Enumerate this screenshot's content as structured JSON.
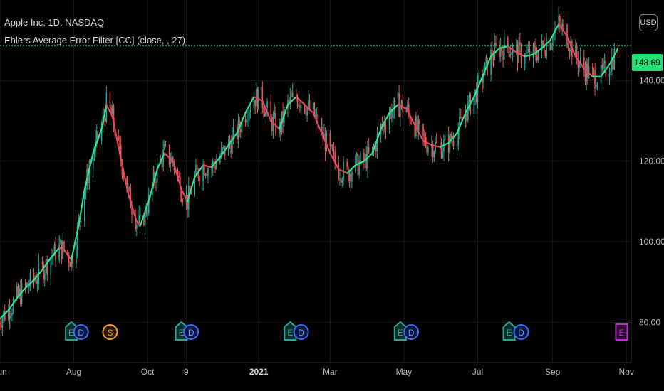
{
  "header": {
    "title": "Apple Inc, 1D, NASDAQ",
    "indicator": "Ehlers Average Error Filter [CC] (close, , 27)"
  },
  "currency_label": "USD",
  "last_price_label": "148.69",
  "colors": {
    "background": "#000000",
    "up_candle": "#26a69a",
    "down_candle": "#ef5350",
    "filter_rising": "#2ee28f",
    "filter_falling": "#e8455f",
    "last_price_line": "#22e073",
    "grid": "#1a1a1a"
  },
  "event_markers": [
    {
      "date": "2020-07-30",
      "label": "E",
      "type": "earnings"
    },
    {
      "date": "2020-08-07",
      "label": "D",
      "type": "dividend"
    },
    {
      "date": "2020-08-31",
      "label": "S",
      "type": "split"
    },
    {
      "date": "2020-10-29",
      "label": "E",
      "type": "earnings"
    },
    {
      "date": "2020-11-06",
      "label": "D",
      "type": "dividend"
    },
    {
      "date": "2021-01-27",
      "label": "E",
      "type": "earnings"
    },
    {
      "date": "2021-02-05",
      "label": "D",
      "type": "dividend"
    },
    {
      "date": "2021-04-28",
      "label": "E",
      "type": "earnings"
    },
    {
      "date": "2021-05-07",
      "label": "D",
      "type": "dividend"
    },
    {
      "date": "2021-07-27",
      "label": "E",
      "type": "earnings"
    },
    {
      "date": "2021-08-06",
      "label": "D",
      "type": "dividend"
    },
    {
      "date": "2021-10-28",
      "label": "E",
      "type": "upcoming-earnings"
    }
  ],
  "chart_data": {
    "type": "line",
    "title": "Apple Inc, 1D, NASDAQ",
    "xlabel": "",
    "ylabel": "",
    "x_ticks": [
      {
        "date": "2020-06-01",
        "label": "Jun"
      },
      {
        "date": "2020-08-01",
        "label": "Aug"
      },
      {
        "date": "2020-10-01",
        "label": "Oct"
      },
      {
        "date": "2020-11-02",
        "label": "9"
      },
      {
        "date": "2021-01-01",
        "label": "2021"
      },
      {
        "date": "2021-03-01",
        "label": "Mar"
      },
      {
        "date": "2021-05-01",
        "label": "May"
      },
      {
        "date": "2021-07-01",
        "label": "Jul"
      },
      {
        "date": "2021-09-01",
        "label": "Sep"
      },
      {
        "date": "2021-11-01",
        "label": "Nov"
      }
    ],
    "y_ticks": [
      80,
      100,
      120,
      140
    ],
    "y_tick_labels": [
      "80.00",
      "100.00",
      "120.00",
      "140.00"
    ],
    "ylim": [
      70,
      160
    ],
    "xlim": [
      "2020-06-01",
      "2021-11-05"
    ],
    "log_scale": false,
    "grid": true,
    "last_price": 148.69,
    "series": [
      {
        "name": "Ehlers Average Error Filter [CC] (close, , 27)",
        "points": [
          [
            "2020-05-29",
            80
          ],
          [
            "2020-06-08",
            83
          ],
          [
            "2020-06-15",
            86
          ],
          [
            "2020-06-22",
            88.5
          ],
          [
            "2020-06-29",
            90.5
          ],
          [
            "2020-07-06",
            93
          ],
          [
            "2020-07-13",
            96
          ],
          [
            "2020-07-20",
            98.5
          ],
          [
            "2020-07-24",
            98
          ],
          [
            "2020-07-30",
            95.5
          ],
          [
            "2020-08-05",
            104
          ],
          [
            "2020-08-10",
            113
          ],
          [
            "2020-08-17",
            122
          ],
          [
            "2020-08-24",
            128
          ],
          [
            "2020-08-28",
            134
          ],
          [
            "2020-09-02",
            131
          ],
          [
            "2020-09-08",
            122
          ],
          [
            "2020-09-15",
            112
          ],
          [
            "2020-09-22",
            105
          ],
          [
            "2020-09-25",
            104
          ],
          [
            "2020-10-02",
            110
          ],
          [
            "2020-10-09",
            118
          ],
          [
            "2020-10-15",
            122
          ],
          [
            "2020-10-22",
            120
          ],
          [
            "2020-10-29",
            113
          ],
          [
            "2020-11-03",
            110
          ],
          [
            "2020-11-09",
            116
          ],
          [
            "2020-11-16",
            119
          ],
          [
            "2020-11-23",
            118.5
          ],
          [
            "2020-11-30",
            121
          ],
          [
            "2020-12-07",
            124
          ],
          [
            "2020-12-14",
            127
          ],
          [
            "2020-12-21",
            132
          ],
          [
            "2020-12-28",
            136
          ],
          [
            "2021-01-04",
            135
          ],
          [
            "2021-01-11",
            130
          ],
          [
            "2021-01-18",
            128
          ],
          [
            "2021-01-25",
            134
          ],
          [
            "2021-02-01",
            136
          ],
          [
            "2021-02-08",
            134
          ],
          [
            "2021-02-15",
            132
          ],
          [
            "2021-02-22",
            127
          ],
          [
            "2021-03-01",
            122
          ],
          [
            "2021-03-08",
            118
          ],
          [
            "2021-03-15",
            117
          ],
          [
            "2021-03-22",
            119
          ],
          [
            "2021-03-29",
            120
          ],
          [
            "2021-04-05",
            122
          ],
          [
            "2021-04-12",
            128
          ],
          [
            "2021-04-19",
            132
          ],
          [
            "2021-04-26",
            134
          ],
          [
            "2021-05-03",
            133
          ],
          [
            "2021-05-10",
            129
          ],
          [
            "2021-05-17",
            125
          ],
          [
            "2021-05-24",
            124
          ],
          [
            "2021-05-31",
            123.5
          ],
          [
            "2021-06-07",
            124.5
          ],
          [
            "2021-06-14",
            127
          ],
          [
            "2021-06-21",
            132
          ],
          [
            "2021-06-28",
            136
          ],
          [
            "2021-07-05",
            141
          ],
          [
            "2021-07-12",
            146
          ],
          [
            "2021-07-19",
            148
          ],
          [
            "2021-07-26",
            148.5
          ],
          [
            "2021-08-02",
            147
          ],
          [
            "2021-08-09",
            146
          ],
          [
            "2021-08-16",
            146.5
          ],
          [
            "2021-08-23",
            148
          ],
          [
            "2021-08-30",
            150
          ],
          [
            "2021-09-06",
            154
          ],
          [
            "2021-09-13",
            151
          ],
          [
            "2021-09-20",
            146
          ],
          [
            "2021-09-27",
            143
          ],
          [
            "2021-10-04",
            141
          ],
          [
            "2021-10-11",
            141
          ],
          [
            "2021-10-18",
            144
          ],
          [
            "2021-10-25",
            148
          ]
        ]
      }
    ]
  }
}
